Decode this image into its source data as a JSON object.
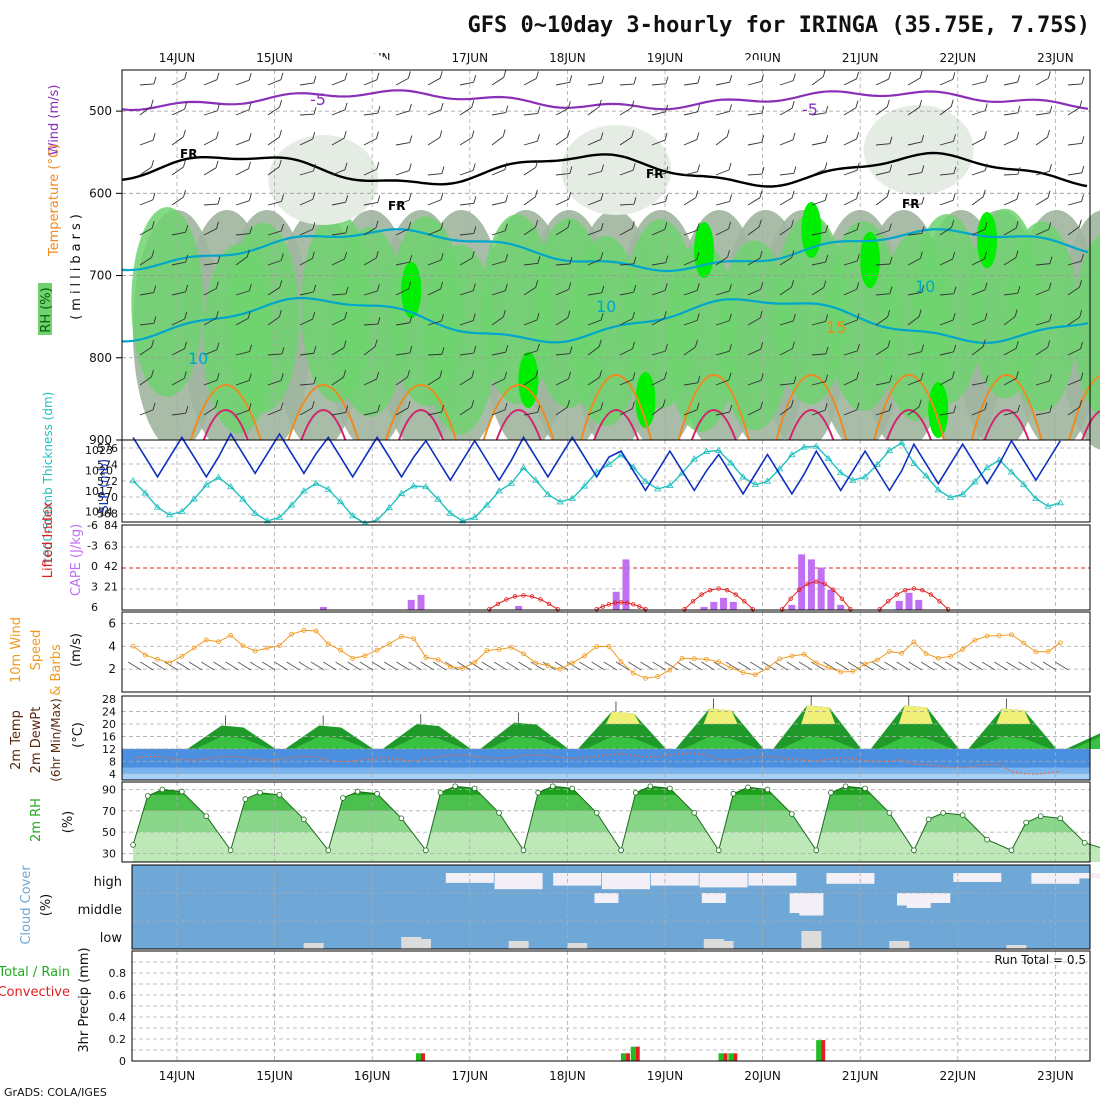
{
  "title": "GFS 0~10day 3-hourly for IRINGA (35.75E, 7.75S)",
  "footer": "GrADS: COLA/IGES",
  "days": [
    "14JUN",
    "15JUN",
    "16JUN",
    "17JUN",
    "18JUN",
    "19JUN",
    "20JUN",
    "21JUN",
    "22JUN",
    "23JUN"
  ],
  "colors": {
    "rh_dark": "#9fb59f",
    "rh_mid": "#c8d8c8",
    "rh_light": "#e4ece4",
    "rh_green": "#6ed36e",
    "rh_bright": "#00ee00",
    "temp_minus5": "#8a2fb8",
    "temp_10": "#00a6cc",
    "temp_15": "#f08a1e",
    "freezing": "#000000",
    "thickness": "#1fc0c0",
    "slp": "#1030c0",
    "lifted_index": "#e02020",
    "cape": "#c070f0",
    "wind10m": "#f09a20",
    "cloud": "#6fa8d6",
    "cloud_clear": "#f2f0f6",
    "precip_total": "#22bb22",
    "precip_conv": "#e02020"
  },
  "panels": {
    "p1": {
      "ylabels": [
        "Wind (m/s)",
        "Temperature (°C)",
        "RH (%)"
      ],
      "yunit": "(millibars)",
      "ticks": [
        "500",
        "600",
        "700",
        "800",
        "900"
      ],
      "contour_labels": {
        "minus5": "-5",
        "ten": "10",
        "fifteen": "15",
        "fr": "FR"
      }
    },
    "p2": {
      "label_thick": "1000-500mb Thickness (dm)",
      "label_slp": "SLP (mb)",
      "left_ticks": [
        "576",
        "574",
        "572",
        "570",
        "568"
      ],
      "right_ticks": [
        "1023",
        "1020",
        "1017",
        "1014"
      ]
    },
    "p3": {
      "label_li": "Lifted Index",
      "label_cape": "CAPE (J/kg)",
      "left_ticks": [
        "-6",
        "-3",
        "0",
        "3",
        "6"
      ],
      "right_ticks": [
        "84",
        "63",
        "42",
        "21"
      ]
    },
    "p4": {
      "label_a": "10m Wind",
      "label_b": "Speed",
      "label_c": "& Barbs",
      "unit": "(m/s)",
      "ticks": [
        "6",
        "4",
        "2"
      ]
    },
    "p5": {
      "label_a": "2m Temp",
      "label_b": "2m DewPt",
      "label_c": "(6hr Min/Max)",
      "unit": "(°C)",
      "ticks": [
        "28",
        "24",
        "20",
        "16",
        "12",
        "8",
        "4"
      ]
    },
    "p6": {
      "label": "2m RH",
      "unit": "(%)",
      "ticks": [
        "90",
        "70",
        "50",
        "30"
      ]
    },
    "p7": {
      "label": "Cloud Cover",
      "unit": "(%)",
      "levels": [
        "high",
        "middle",
        "low"
      ]
    },
    "p8": {
      "label_a": "3hr Precip (mm)",
      "label_b": "Total / Rain",
      "label_c": "Convective",
      "run_total": "Run Total = 0.5",
      "ticks": [
        "0.8",
        "0.6",
        "0.4",
        "0.2",
        "0"
      ]
    }
  },
  "chart_data": [
    {
      "type": "line",
      "title": "SLP (mb)",
      "x": [
        "14JUN",
        "15JUN",
        "16JUN",
        "17JUN",
        "18JUN",
        "19JUN",
        "20JUN",
        "21JUN",
        "22JUN",
        "23JUN"
      ],
      "series": [
        {
          "name": "SLP (mb)",
          "values": [
            1021.5,
            1022.0,
            1021.5,
            1021.0,
            1021.5,
            1019.5,
            1019.0,
            1019.5,
            1020.5,
            1021.0
          ]
        },
        {
          "name": "1000-500mb Thickness (dm)",
          "values": [
            570.5,
            569.8,
            569.5,
            569.8,
            572.0,
            573.5,
            574.0,
            574.5,
            572.5,
            571.5
          ]
        }
      ]
    },
    {
      "type": "bar",
      "title": "CAPE (J/kg)",
      "categories": [
        "15.5",
        "16.4",
        "16.5",
        "17.5",
        "18.5",
        "18.6",
        "19.4",
        "19.5",
        "19.6",
        "19.7",
        "20.3",
        "20.4",
        "20.5",
        "20.6",
        "20.7",
        "20.8",
        "21.4",
        "21.5",
        "21.6"
      ],
      "values": [
        3,
        10,
        15,
        4,
        18,
        50,
        3,
        8,
        12,
        8,
        5,
        55,
        50,
        42,
        20,
        5,
        9,
        17,
        10
      ],
      "ylim": [
        0,
        84
      ]
    },
    {
      "type": "line",
      "title": "10m Wind Speed (m/s)",
      "x": [
        "14JUN",
        "15JUN",
        "16JUN",
        "17JUN",
        "18JUN",
        "19JUN",
        "20JUN",
        "21JUN",
        "22JUN",
        "23JUN"
      ],
      "values": [
        3.5,
        4.5,
        4.0,
        3.0,
        3.0,
        2.3,
        2.5,
        2.5,
        4.0,
        4.5
      ],
      "ylim": [
        0,
        7
      ]
    },
    {
      "type": "area",
      "title": "2m Temp (°C)",
      "x": [
        "14JUN",
        "15JUN",
        "16JUN",
        "17JUN",
        "18JUN",
        "19JUN",
        "20JUN",
        "21JUN",
        "22JUN",
        "23JUN"
      ],
      "series": [
        {
          "name": "2m Temp",
          "values": [
            19.5,
            19.5,
            20.0,
            20.5,
            24.0,
            25.0,
            26.0,
            26.0,
            25.0,
            17.0
          ]
        },
        {
          "name": "2m DewPt",
          "values": [
            9.0,
            9.0,
            8.5,
            9.5,
            9.5,
            10.0,
            9.0,
            8.5,
            6.5,
            4.5
          ]
        }
      ],
      "ylim": [
        2,
        29
      ]
    },
    {
      "type": "area",
      "title": "2m RH (%)",
      "x": [
        "14JUN",
        "15JUN",
        "16JUN",
        "17JUN",
        "18JUN",
        "19JUN",
        "20JUN",
        "21JUN",
        "22JUN",
        "23JUN"
      ],
      "values": [
        90,
        87,
        88,
        93,
        93,
        93,
        92,
        93,
        68,
        65
      ],
      "ylim": [
        22,
        97
      ]
    },
    {
      "type": "bar",
      "title": "3hr Precip (mm)",
      "categories": [
        "16.5",
        "18.6",
        "18.7",
        "19.6",
        "19.7",
        "20.6"
      ],
      "values": [
        0.07,
        0.07,
        0.13,
        0.07,
        0.07,
        0.19
      ],
      "ylim": [
        0,
        1
      ]
    }
  ]
}
